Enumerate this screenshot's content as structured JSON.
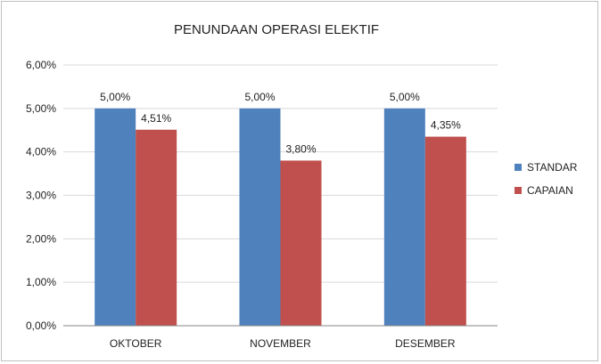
{
  "chart_data": {
    "type": "bar",
    "title": "PENUNDAAN OPERASI ELEKTIF",
    "xlabel": "",
    "ylabel": "",
    "categories": [
      "OKTOBER",
      "NOVEMBER",
      "DESEMBER"
    ],
    "series": [
      {
        "name": "STANDAR",
        "color": "#4f81bd",
        "values": [
          5.0,
          5.0,
          5.0
        ],
        "labels": [
          "5,00%",
          "5,00%",
          "5,00%"
        ]
      },
      {
        "name": "CAPAIAN",
        "color": "#c0504d",
        "values": [
          4.51,
          3.8,
          4.35
        ],
        "labels": [
          "4,51%",
          "3,80%",
          "4,35%"
        ]
      }
    ],
    "ylim": [
      0,
      6
    ],
    "yticks": [
      0,
      1,
      2,
      3,
      4,
      5,
      6
    ],
    "ytick_labels": [
      "0,00%",
      "1,00%",
      "2,00%",
      "3,00%",
      "4,00%",
      "5,00%",
      "6,00%"
    ],
    "grid": true,
    "legend_position": "right"
  }
}
